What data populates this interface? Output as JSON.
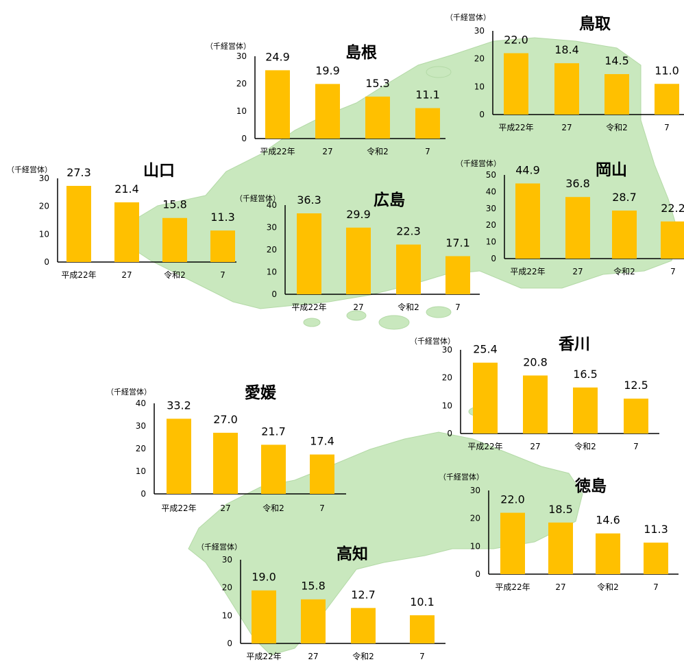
{
  "colors": {
    "bar": "#FFC000",
    "land": "#C9E8BE",
    "land_edge": "#B3D9A6",
    "axis": "#000000"
  },
  "unit_label": "（千経営体）",
  "chart_data": [
    {
      "name": "島根",
      "type": "bar",
      "unit": "（千経営体）",
      "categories": [
        "平成22年",
        "27",
        "令和2",
        "7"
      ],
      "values": [
        24.9,
        19.9,
        15.3,
        11.1
      ],
      "value_labels": [
        "24.9",
        "19.9",
        "15.3",
        "11.1"
      ],
      "yticks": [
        "0",
        "10",
        "20",
        "30"
      ],
      "ylim": [
        0,
        30
      ]
    },
    {
      "name": "鳥取",
      "type": "bar",
      "unit": "（千経営体）",
      "categories": [
        "平成22年",
        "27",
        "令和2",
        "7"
      ],
      "values": [
        22.0,
        18.4,
        14.5,
        11.0
      ],
      "value_labels": [
        "22.0",
        "18.4",
        "14.5",
        "11.0"
      ],
      "yticks": [
        "0",
        "10",
        "20",
        "30"
      ],
      "ylim": [
        0,
        30
      ]
    },
    {
      "name": "山口",
      "type": "bar",
      "unit": "（千経営体）",
      "categories": [
        "平成22年",
        "27",
        "令和2",
        "7"
      ],
      "values": [
        27.3,
        21.4,
        15.8,
        11.3
      ],
      "value_labels": [
        "27.3",
        "21.4",
        "15.8",
        "11.3"
      ],
      "yticks": [
        "0",
        "10",
        "20",
        "30"
      ],
      "ylim": [
        0,
        30
      ]
    },
    {
      "name": "広島",
      "type": "bar",
      "unit": "（千経営体）",
      "categories": [
        "平成22年",
        "27",
        "令和2",
        "7"
      ],
      "values": [
        36.3,
        29.9,
        22.3,
        17.1
      ],
      "value_labels": [
        "36.3",
        "29.9",
        "22.3",
        "17.1"
      ],
      "yticks": [
        "0",
        "10",
        "20",
        "30",
        "40"
      ],
      "ylim": [
        0,
        40
      ]
    },
    {
      "name": "岡山",
      "type": "bar",
      "unit": "（千経営体）",
      "categories": [
        "平成22年",
        "27",
        "令和2",
        "7"
      ],
      "values": [
        44.9,
        36.8,
        28.7,
        22.2
      ],
      "value_labels": [
        "44.9",
        "36.8",
        "28.7",
        "22.2"
      ],
      "yticks": [
        "0",
        "10",
        "20",
        "30",
        "40",
        "50"
      ],
      "ylim": [
        0,
        50
      ]
    },
    {
      "name": "香川",
      "type": "bar",
      "unit": "（千経営体）",
      "categories": [
        "平成22年",
        "27",
        "令和2",
        "7"
      ],
      "values": [
        25.4,
        20.8,
        16.5,
        12.5
      ],
      "value_labels": [
        "25.4",
        "20.8",
        "16.5",
        "12.5"
      ],
      "yticks": [
        "0",
        "10",
        "20",
        "30"
      ],
      "ylim": [
        0,
        30
      ]
    },
    {
      "name": "愛媛",
      "type": "bar",
      "unit": "（千経営体）",
      "categories": [
        "平成22年",
        "27",
        "令和2",
        "7"
      ],
      "values": [
        33.2,
        27.0,
        21.7,
        17.4
      ],
      "value_labels": [
        "33.2",
        "27.0",
        "21.7",
        "17.4"
      ],
      "yticks": [
        "0",
        "10",
        "20",
        "30",
        "40"
      ],
      "ylim": [
        0,
        40
      ]
    },
    {
      "name": "徳島",
      "type": "bar",
      "unit": "（千経営体）",
      "categories": [
        "平成22年",
        "27",
        "令和2",
        "7"
      ],
      "values": [
        22.0,
        18.5,
        14.6,
        11.3
      ],
      "value_labels": [
        "22.0",
        "18.5",
        "14.6",
        "11.3"
      ],
      "yticks": [
        "0",
        "10",
        "20",
        "30"
      ],
      "ylim": [
        0,
        30
      ]
    },
    {
      "name": "高知",
      "type": "bar",
      "unit": "（千経営体）",
      "categories": [
        "平成22年",
        "27",
        "令和2",
        "7"
      ],
      "values": [
        19.0,
        15.8,
        12.7,
        10.1
      ],
      "value_labels": [
        "19.0",
        "15.8",
        "12.7",
        "10.1"
      ],
      "yticks": [
        "0",
        "10",
        "20",
        "30"
      ],
      "ylim": [
        0,
        30
      ]
    }
  ]
}
